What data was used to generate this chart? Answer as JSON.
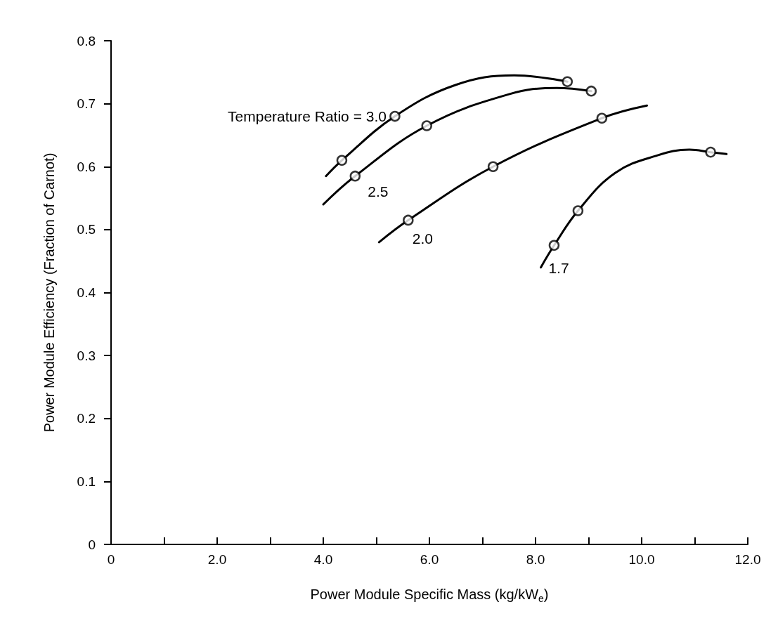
{
  "chart_data": {
    "type": "line",
    "xlabel": "Power Module Specific Mass (kg/kW$_{e}$)",
    "ylabel": "Power Module Efficiency (Fraction of Carnot)",
    "xlim": [
      0,
      12
    ],
    "ylim": [
      0,
      0.8
    ],
    "xticks": [
      {
        "value": 0,
        "label": "0"
      },
      {
        "value": 1,
        "label": null
      },
      {
        "value": 2,
        "label": "2.0"
      },
      {
        "value": 3,
        "label": null
      },
      {
        "value": 4,
        "label": "4.0"
      },
      {
        "value": 5,
        "label": null
      },
      {
        "value": 6,
        "label": "6.0"
      },
      {
        "value": 7,
        "label": null
      },
      {
        "value": 8,
        "label": "8.0"
      },
      {
        "value": 9,
        "label": null
      },
      {
        "value": 10,
        "label": "10.0"
      },
      {
        "value": 11,
        "label": null
      },
      {
        "value": 12,
        "label": "12.0"
      }
    ],
    "yticks": [
      0,
      0.1,
      0.2,
      0.3,
      0.4,
      0.5,
      0.6,
      0.7,
      0.8
    ],
    "grid": false,
    "line_style": "solid",
    "series": [
      {
        "name": "Temperature Ratio = 3.0",
        "marker": "none",
        "color": "#000000",
        "x": [
          4.05,
          4.35,
          5.35,
          6.5,
          7.6,
          8.6
        ],
        "values": [
          0.585,
          0.61,
          0.68,
          0.73,
          0.745,
          0.735
        ]
      },
      {
        "name": "2.5",
        "marker": "none",
        "color": "#000000",
        "x": [
          4.0,
          4.6,
          5.95,
          7.5,
          8.4,
          9.05
        ],
        "values": [
          0.54,
          0.585,
          0.665,
          0.715,
          0.725,
          0.72
        ]
      },
      {
        "name": "2.0",
        "marker": "none",
        "color": "#000000",
        "x": [
          5.05,
          5.6,
          7.2,
          9.25,
          10.1
        ],
        "values": [
          0.48,
          0.515,
          0.6,
          0.677,
          0.697
        ]
      },
      {
        "name": "1.7",
        "marker": "none",
        "color": "#000000",
        "x": [
          8.1,
          8.35,
          8.8,
          9.5,
          10.3,
          10.9,
          11.3,
          11.6
        ],
        "values": [
          0.44,
          0.475,
          0.53,
          0.59,
          0.618,
          0.627,
          0.623,
          0.62
        ]
      },
      {
        "type": "scatter",
        "marker": "circle",
        "color": "#000000",
        "x": [
          4.35,
          5.35,
          8.6
        ],
        "values": [
          0.61,
          0.68,
          0.735
        ]
      },
      {
        "type": "scatter",
        "marker": "circle",
        "color": "#000000",
        "x": [
          4.6,
          5.95,
          9.05
        ],
        "values": [
          0.585,
          0.665,
          0.72
        ]
      },
      {
        "type": "scatter",
        "marker": "circle",
        "color": "#000000",
        "x": [
          5.6,
          7.2,
          9.25
        ],
        "values": [
          0.515,
          0.6,
          0.677
        ]
      },
      {
        "type": "scatter",
        "marker": "circle",
        "color": "#000000",
        "x": [
          8.35,
          8.8,
          11.3
        ],
        "values": [
          0.475,
          0.53,
          0.623
        ]
      }
    ]
  }
}
